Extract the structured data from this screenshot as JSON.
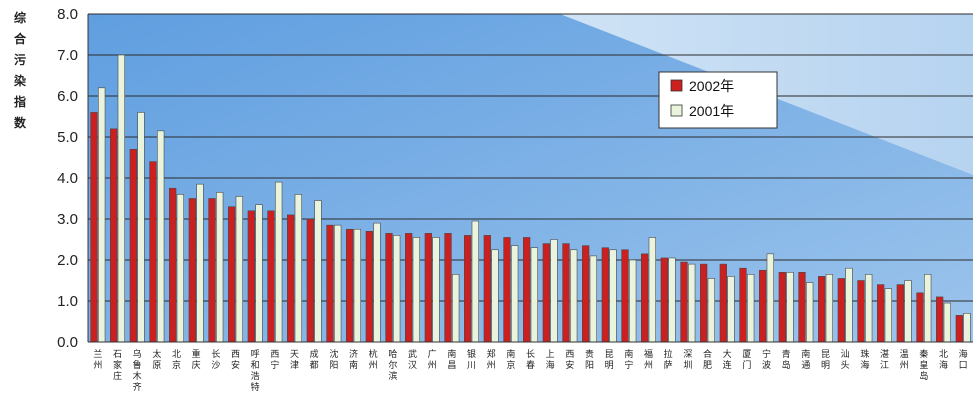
{
  "chart_data": {
    "type": "bar",
    "title": "",
    "ylabel": "综合污染指数",
    "xlabel": "",
    "ylim": [
      0,
      8
    ],
    "yticks": [
      "0.0",
      "1.0",
      "2.0",
      "3.0",
      "4.0",
      "5.0",
      "6.0",
      "7.0",
      "8.0"
    ],
    "grid": true,
    "legend_position": "top-right",
    "colors": {
      "2002": "#cc1f1f",
      "2001": "#eaf3dc",
      "plot_bg": "#7fb2e8",
      "plot_bg_light": "#cfe3f5"
    },
    "categories": [
      "兰州",
      "石家庄",
      "乌鲁木齐",
      "太原",
      "北京",
      "重庆",
      "长沙",
      "西安",
      "呼和浩特",
      "西宁",
      "天津",
      "成都",
      "沈阳",
      "济南",
      "杭州",
      "哈尔滨",
      "武汉",
      "广州",
      "南昌",
      "银川",
      "郑州",
      "南京",
      "长春",
      "上海",
      "西安",
      "贵阳",
      "昆明",
      "南宁",
      "福州",
      "拉萨",
      "深圳",
      "合肥",
      "大连",
      "厦门",
      "宁波",
      "青岛",
      "南通",
      "昆明",
      "汕头",
      "珠海",
      "湛江",
      "温州",
      "秦皇岛",
      "北海",
      "海口"
    ],
    "series": [
      {
        "name": "2002年",
        "values": [
          5.6,
          5.2,
          4.7,
          4.4,
          3.75,
          3.5,
          3.5,
          3.3,
          3.2,
          3.2,
          3.1,
          3.0,
          2.85,
          2.75,
          2.7,
          2.65,
          2.65,
          2.65,
          2.65,
          2.6,
          2.6,
          2.55,
          2.55,
          2.4,
          2.4,
          2.35,
          2.3,
          2.25,
          2.15,
          2.05,
          1.95,
          1.9,
          1.9,
          1.8,
          1.75,
          1.7,
          1.7,
          1.6,
          1.55,
          1.5,
          1.4,
          1.4,
          1.2,
          1.1,
          0.65
        ]
      },
      {
        "name": "2001年",
        "values": [
          6.2,
          7.0,
          5.6,
          5.15,
          3.6,
          3.85,
          3.65,
          3.55,
          3.35,
          3.9,
          3.6,
          3.45,
          2.85,
          2.75,
          2.9,
          2.6,
          2.55,
          2.55,
          1.65,
          2.95,
          2.25,
          2.35,
          2.3,
          2.5,
          2.25,
          2.1,
          2.25,
          2.0,
          2.55,
          2.05,
          1.9,
          1.55,
          1.6,
          1.65,
          2.15,
          1.7,
          1.45,
          1.65,
          1.8,
          1.65,
          1.3,
          1.5,
          1.65,
          0.95,
          0.7
        ]
      }
    ]
  }
}
